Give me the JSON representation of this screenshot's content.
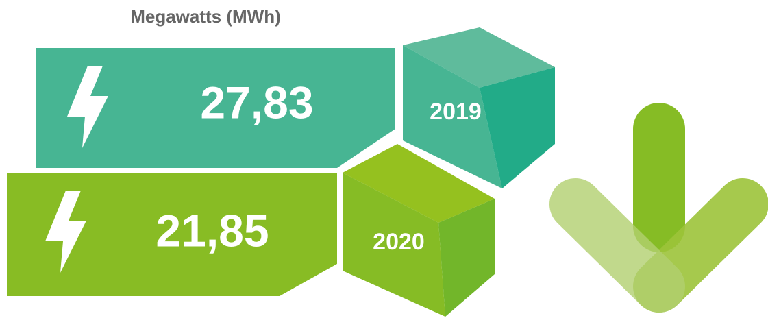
{
  "title": "Megawatts (MWh)",
  "items": [
    {
      "value": "27,83",
      "year": "2019"
    },
    {
      "value": "21,85",
      "year": "2020"
    }
  ]
}
